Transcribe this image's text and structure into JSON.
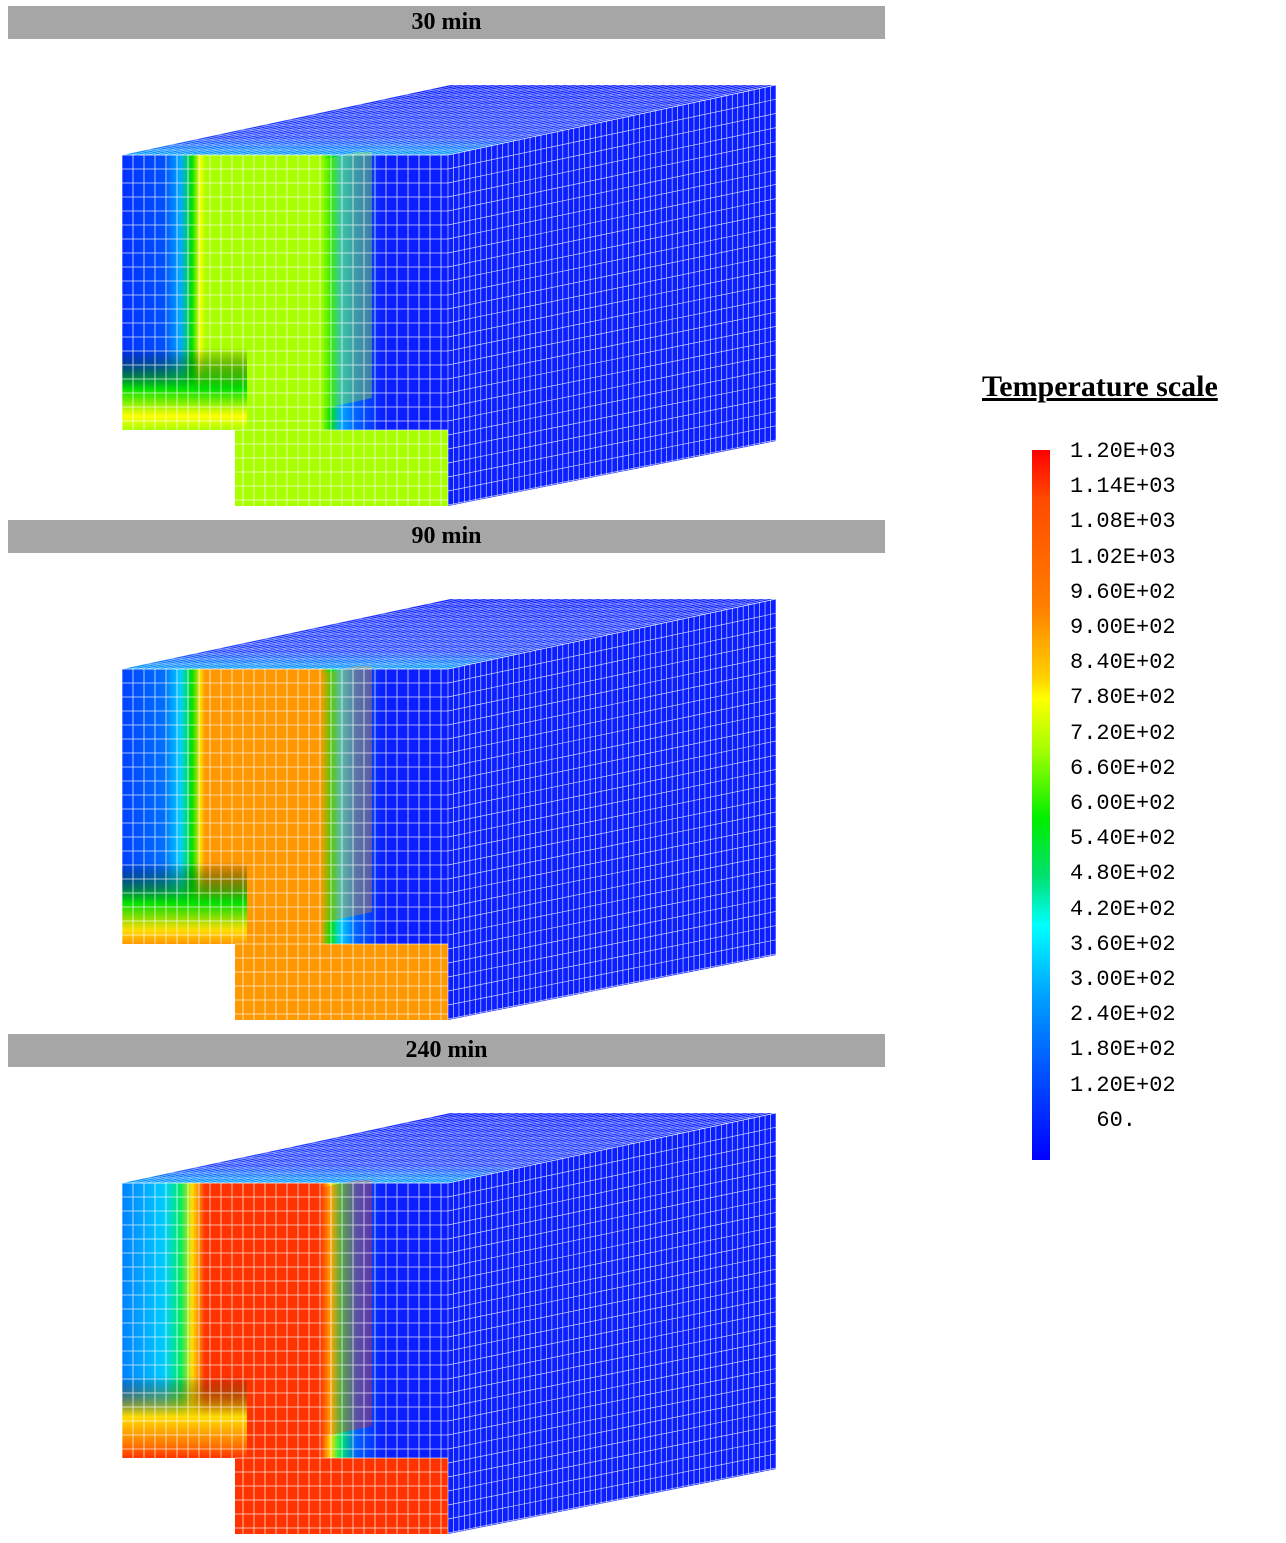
{
  "panels": [
    {
      "label": "30 min",
      "colors": {
        "hot": "#a8ff00",
        "band": "#00e000",
        "edge": "#ffff00",
        "left": "#0030ff",
        "left2": "#0050ff",
        "glow": "#00aaff"
      }
    },
    {
      "label": "90 min",
      "colors": {
        "hot": "#ff9800",
        "band": "#00e000",
        "edge": "#ffdd00",
        "left": "#0040ff",
        "left2": "#0070ff",
        "glow": "#00d0ff"
      }
    },
    {
      "label": "240 min",
      "colors": {
        "hot": "#ff3300",
        "band": "#ffdd00",
        "edge": "#ff7700",
        "left": "#0080ff",
        "left2": "#00ccff",
        "glow": "#00ee60"
      }
    }
  ],
  "legend": {
    "title": "Temperature scale",
    "labels": [
      "1.20E+03",
      "1.14E+03",
      "1.08E+03",
      "1.02E+03",
      "9.60E+02",
      "9.00E+02",
      "8.40E+02",
      "7.80E+02",
      "7.20E+02",
      "6.60E+02",
      "6.00E+02",
      "5.40E+02",
      "4.80E+02",
      "4.20E+02",
      "3.60E+02",
      "3.00E+02",
      "2.40E+02",
      "1.80E+02",
      "1.20E+02",
      "  60."
    ]
  },
  "colors": {
    "cold": "#0a1eff",
    "cold_top": "#1a3cff",
    "mesh": "#ffffff",
    "bar": "#a6a6a6"
  }
}
